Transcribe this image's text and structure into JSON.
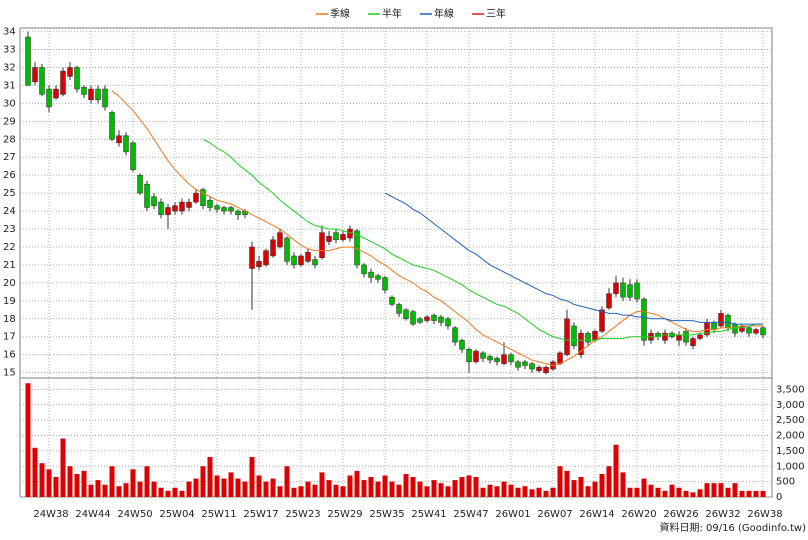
{
  "chart_data": {
    "type": "candlestick",
    "categories": [
      null,
      null,
      null,
      "24W38",
      null,
      null,
      null,
      null,
      null,
      "24W44",
      null,
      null,
      null,
      null,
      null,
      "24W50",
      null,
      null,
      null,
      null,
      null,
      "25W04",
      null,
      null,
      null,
      null,
      null,
      "25W11",
      null,
      null,
      null,
      null,
      null,
      "25W17",
      null,
      null,
      null,
      null,
      null,
      "25W23",
      null,
      null,
      null,
      null,
      null,
      "25W29",
      null,
      null,
      null,
      null,
      null,
      "25W35",
      null,
      null,
      null,
      null,
      null,
      "25W41",
      null,
      null,
      null,
      null,
      null,
      "25W47",
      null,
      null,
      null,
      null,
      null,
      "26W01",
      null,
      null,
      null,
      null,
      null,
      "26W07",
      null,
      null,
      null,
      null,
      null,
      "26W14",
      null,
      null,
      null,
      null,
      null,
      "26W20",
      null,
      null,
      null,
      null,
      null,
      "26W26",
      null,
      null,
      null,
      null,
      null,
      "26W32",
      null,
      null,
      null,
      null,
      null,
      "26W38"
    ],
    "open": [
      33.7,
      31.2,
      32.0,
      30.8,
      30.3,
      30.5,
      31.5,
      32.0,
      30.9,
      30.2,
      30.8,
      30.8,
      29.5,
      27.8,
      28.2,
      27.8,
      26.0,
      25.5,
      24.8,
      24.5,
      23.8,
      24.0,
      24.0,
      24.2,
      24.5,
      25.2,
      24.6,
      24.3,
      24.2,
      24.2,
      24.0,
      24.0,
      20.8,
      20.9,
      21.0,
      21.5,
      22.0,
      22.5,
      21.5,
      21.0,
      21.2,
      21.3,
      21.4,
      22.3,
      22.8,
      22.4,
      22.5,
      22.9,
      21.0,
      20.6,
      20.4,
      20.3,
      19.2,
      18.8,
      18.5,
      18.4,
      18.0,
      17.9,
      18.2,
      18.1,
      18.0,
      17.5,
      16.8,
      16.3,
      15.6,
      16.1,
      15.9,
      15.8,
      15.5,
      16.0,
      15.6,
      15.6,
      15.5,
      15.1,
      15.0,
      15.2,
      15.5,
      16.0,
      17.6,
      16.0,
      17.2,
      16.8,
      17.3,
      18.6,
      19.4,
      20.0,
      19.9,
      20.0,
      19.1,
      16.8,
      17.2,
      16.8,
      17.2,
      16.8,
      17.3,
      16.5,
      16.9,
      17.1,
      17.8,
      17.6,
      18.2,
      17.7,
      17.3,
      17.5,
      17.2,
      17.5
    ],
    "high": [
      34.0,
      32.3,
      32.2,
      31.0,
      31.0,
      32.0,
      32.3,
      32.1,
      31.0,
      31.0,
      31.0,
      31.0,
      29.6,
      28.5,
      28.4,
      27.9,
      26.1,
      25.7,
      25.0,
      24.7,
      24.4,
      24.5,
      24.7,
      24.7,
      25.2,
      25.3,
      24.8,
      24.4,
      24.3,
      24.3,
      24.1,
      24.1,
      22.3,
      21.5,
      21.9,
      22.6,
      23.0,
      22.6,
      21.7,
      21.6,
      21.9,
      21.5,
      23.2,
      22.9,
      23.0,
      22.9,
      23.2,
      23.0,
      21.1,
      20.8,
      20.5,
      20.4,
      19.3,
      18.9,
      18.6,
      18.5,
      18.1,
      18.2,
      18.3,
      18.2,
      18.1,
      17.6,
      16.9,
      16.4,
      16.3,
      16.2,
      16.0,
      15.9,
      16.7,
      16.1,
      15.7,
      15.7,
      15.6,
      15.4,
      15.4,
      15.7,
      16.2,
      18.5,
      17.8,
      17.4,
      17.3,
      17.4,
      18.7,
      19.7,
      20.4,
      20.3,
      20.2,
      20.2,
      19.2,
      17.4,
      17.3,
      17.4,
      17.3,
      17.3,
      17.5,
      17.0,
      17.2,
      18.0,
      17.9,
      18.5,
      18.3,
      17.8,
      17.7,
      17.6,
      17.5,
      17.6
    ],
    "low": [
      31.0,
      31.0,
      30.4,
      29.5,
      30.2,
      30.4,
      31.3,
      30.6,
      30.3,
      30.0,
      30.0,
      29.6,
      27.9,
      27.6,
      27.1,
      26.2,
      24.9,
      24.0,
      24.1,
      23.6,
      23.0,
      23.8,
      23.8,
      24.0,
      24.4,
      24.1,
      24.0,
      23.9,
      23.8,
      23.8,
      23.5,
      23.6,
      18.5,
      20.7,
      20.9,
      21.4,
      21.9,
      21.0,
      20.8,
      20.9,
      21.1,
      20.8,
      21.3,
      22.1,
      22.2,
      22.3,
      22.3,
      20.8,
      20.3,
      20.0,
      20.0,
      19.4,
      18.7,
      18.1,
      17.9,
      17.6,
      17.7,
      17.8,
      17.7,
      17.6,
      17.4,
      16.5,
      16.1,
      15.0,
      15.5,
      15.6,
      15.5,
      15.4,
      15.4,
      15.4,
      15.1,
      15.2,
      15.0,
      15.0,
      14.9,
      15.1,
      15.4,
      15.9,
      16.3,
      15.8,
      16.5,
      16.7,
      17.2,
      18.5,
      19.2,
      19.0,
      19.0,
      18.9,
      16.5,
      16.6,
      16.8,
      16.6,
      16.9,
      16.5,
      16.5,
      16.3,
      16.8,
      17.0,
      17.2,
      17.5,
      17.3,
      17.0,
      17.2,
      17.0,
      17.1,
      16.9
    ],
    "close": [
      31.0,
      32.0,
      30.5,
      29.8,
      30.8,
      31.8,
      32.0,
      30.8,
      30.5,
      30.8,
      30.2,
      29.8,
      28.0,
      28.2,
      27.3,
      26.3,
      25.0,
      24.2,
      24.3,
      23.8,
      24.2,
      24.3,
      24.5,
      24.5,
      25.0,
      24.3,
      24.2,
      24.1,
      24.0,
      24.0,
      23.8,
      23.8,
      22.0,
      21.2,
      21.8,
      22.4,
      22.8,
      21.2,
      21.0,
      21.5,
      21.7,
      21.0,
      22.8,
      22.6,
      22.4,
      22.7,
      23.0,
      21.0,
      20.5,
      20.3,
      20.2,
      19.6,
      18.8,
      18.3,
      18.0,
      17.7,
      17.8,
      18.1,
      17.9,
      17.8,
      17.6,
      16.7,
      16.3,
      15.6,
      16.2,
      15.8,
      15.7,
      15.6,
      16.0,
      15.6,
      15.3,
      15.4,
      15.2,
      15.3,
      15.3,
      15.6,
      16.1,
      18.0,
      16.5,
      17.2,
      16.7,
      17.3,
      18.5,
      19.4,
      20.0,
      19.2,
      19.2,
      19.1,
      16.8,
      17.2,
      17.0,
      17.2,
      17.0,
      17.1,
      16.7,
      16.9,
      17.1,
      17.8,
      17.4,
      18.3,
      17.5,
      17.2,
      17.6,
      17.2,
      17.4,
      17.1
    ],
    "up_color": "#dd0000",
    "down_color": "#00bb00",
    "ylim": [
      14.7,
      34.2
    ],
    "yticks": [
      15,
      16,
      17,
      18,
      19,
      20,
      21,
      22,
      23,
      24,
      25,
      26,
      27,
      28,
      29,
      30,
      31,
      32,
      33,
      34
    ],
    "grid": true,
    "series": [
      {
        "name": "季線",
        "color": "#f07820",
        "values": [
          null,
          null,
          null,
          null,
          null,
          null,
          null,
          null,
          null,
          null,
          null,
          null,
          30.7,
          30.4,
          30.0,
          29.6,
          29.1,
          28.6,
          28.0,
          27.4,
          26.8,
          26.3,
          25.9,
          25.5,
          25.2,
          25.0,
          24.8,
          24.6,
          24.5,
          24.4,
          24.2,
          24.0,
          23.8,
          23.6,
          23.4,
          23.2,
          23.0,
          22.7,
          22.4,
          22.1,
          21.9,
          21.8,
          21.8,
          21.8,
          21.9,
          22.0,
          22.0,
          21.9,
          21.7,
          21.5,
          21.2,
          21.0,
          20.7,
          20.4,
          20.2,
          20.0,
          19.7,
          19.5,
          19.2,
          19.0,
          18.7,
          18.4,
          18.1,
          17.8,
          17.4,
          17.1,
          16.9,
          16.7,
          16.5,
          16.3,
          16.1,
          15.9,
          15.7,
          15.6,
          15.5,
          15.4,
          15.5,
          15.7,
          15.9,
          16.2,
          16.5,
          16.8,
          17.0,
          17.3,
          17.6,
          17.9,
          18.2,
          18.4,
          18.4,
          18.3,
          18.2,
          18.0,
          17.8,
          17.6,
          17.4,
          17.3,
          17.3,
          17.4,
          17.4,
          17.5,
          17.5,
          17.5,
          17.6,
          17.6,
          17.6,
          17.6
        ]
      },
      {
        "name": "半年",
        "color": "#22cc22",
        "values": [
          null,
          null,
          null,
          null,
          null,
          null,
          null,
          null,
          null,
          null,
          null,
          null,
          null,
          null,
          null,
          null,
          null,
          null,
          null,
          null,
          null,
          null,
          null,
          null,
          null,
          28.0,
          27.8,
          27.5,
          27.3,
          27.0,
          26.6,
          26.3,
          26.0,
          25.6,
          25.3,
          25.0,
          24.6,
          24.3,
          24.0,
          23.7,
          23.4,
          23.2,
          23.1,
          23.0,
          23.0,
          22.9,
          22.8,
          22.7,
          22.5,
          22.3,
          22.1,
          21.9,
          21.6,
          21.4,
          21.2,
          21.0,
          20.9,
          20.8,
          20.7,
          20.5,
          20.3,
          20.1,
          19.9,
          19.6,
          19.4,
          19.2,
          19.0,
          18.8,
          18.7,
          18.5,
          18.3,
          18.0,
          17.7,
          17.4,
          17.2,
          17.0,
          16.9,
          16.8,
          16.8,
          16.8,
          16.8,
          16.8,
          16.9,
          16.9,
          16.9,
          16.9,
          17.0,
          17.0,
          17.0,
          17.0,
          17.0,
          17.1,
          17.1,
          17.1,
          17.1,
          17.1,
          17.2,
          17.2,
          17.3,
          17.3,
          17.4,
          17.5,
          17.5,
          17.6,
          17.7,
          17.7
        ]
      },
      {
        "name": "年線",
        "color": "#2060c0",
        "values": [
          null,
          null,
          null,
          null,
          null,
          null,
          null,
          null,
          null,
          null,
          null,
          null,
          null,
          null,
          null,
          null,
          null,
          null,
          null,
          null,
          null,
          null,
          null,
          null,
          null,
          null,
          null,
          null,
          null,
          null,
          null,
          null,
          null,
          null,
          null,
          null,
          null,
          null,
          null,
          null,
          null,
          null,
          null,
          null,
          null,
          null,
          null,
          null,
          null,
          null,
          null,
          25.0,
          24.8,
          24.6,
          24.4,
          24.1,
          23.9,
          23.6,
          23.3,
          23.0,
          22.7,
          22.4,
          22.1,
          21.8,
          21.6,
          21.3,
          21.0,
          20.8,
          20.6,
          20.4,
          20.2,
          20.0,
          19.8,
          19.6,
          19.4,
          19.3,
          19.1,
          19.0,
          18.8,
          18.7,
          18.6,
          18.5,
          18.4,
          18.3,
          18.3,
          18.2,
          18.2,
          18.1,
          18.1,
          18.0,
          18.0,
          18.0,
          17.9,
          17.9,
          17.9,
          17.9,
          17.8,
          17.8,
          17.8,
          17.8,
          17.8,
          17.7,
          17.7,
          17.7,
          17.7,
          17.7
        ]
      },
      {
        "name": "三年",
        "color": "#dd2020",
        "values": [
          null,
          null,
          null,
          null,
          null,
          null,
          null,
          null,
          null,
          null,
          null,
          null,
          null,
          null,
          null,
          null,
          null,
          null,
          null,
          null,
          null,
          null,
          null,
          null,
          null,
          null,
          null,
          null,
          null,
          null,
          null,
          null,
          null,
          null,
          null,
          null,
          null,
          null,
          null,
          null,
          null,
          null,
          null,
          null,
          null,
          null,
          null,
          null,
          null,
          null,
          null,
          null,
          null,
          null,
          null,
          null,
          null,
          null,
          null,
          null,
          null,
          null,
          null,
          null,
          null,
          null,
          null,
          null,
          null,
          null,
          null,
          null,
          null,
          null,
          null,
          null,
          null,
          null,
          null,
          null,
          null,
          null,
          null,
          null,
          null,
          null,
          null,
          null,
          null,
          null,
          null,
          null,
          null,
          null,
          null,
          null,
          null,
          null,
          null,
          null,
          null,
          null,
          null,
          null,
          null,
          null
        ]
      }
    ],
    "volume": {
      "color": "#dd0000",
      "values": [
        3700,
        1600,
        1100,
        900,
        650,
        1900,
        1000,
        750,
        850,
        400,
        550,
        400,
        1000,
        350,
        450,
        900,
        500,
        1000,
        500,
        300,
        200,
        300,
        200,
        500,
        600,
        1000,
        1300,
        700,
        600,
        800,
        600,
        500,
        1300,
        700,
        500,
        600,
        350,
        1000,
        300,
        350,
        500,
        400,
        800,
        550,
        400,
        350,
        700,
        850,
        550,
        650,
        500,
        700,
        500,
        400,
        750,
        650,
        500,
        350,
        550,
        450,
        350,
        550,
        650,
        700,
        650,
        300,
        400,
        350,
        500,
        400,
        300,
        350,
        250,
        300,
        200,
        300,
        1000,
        850,
        550,
        650,
        350,
        500,
        750,
        1000,
        1700,
        800,
        300,
        300,
        600,
        400,
        300,
        200,
        400,
        300,
        200,
        150,
        250,
        450,
        450,
        450,
        300,
        450,
        200,
        200,
        200,
        200
      ],
      "ylim": [
        0,
        3870
      ],
      "yticks": [
        0,
        500,
        {
          "value": 1000,
          "label": "1,000"
        },
        {
          "value": 1500,
          "label": "1,500"
        },
        {
          "value": 2000,
          "label": "2,000"
        },
        {
          "value": 2500,
          "label": "2,500"
        },
        {
          "value": 3000,
          "label": "3,000"
        },
        {
          "value": 3500,
          "label": "3,500"
        }
      ]
    },
    "footer": "資料日期: 09/16 (Goodinfo.tw)"
  }
}
